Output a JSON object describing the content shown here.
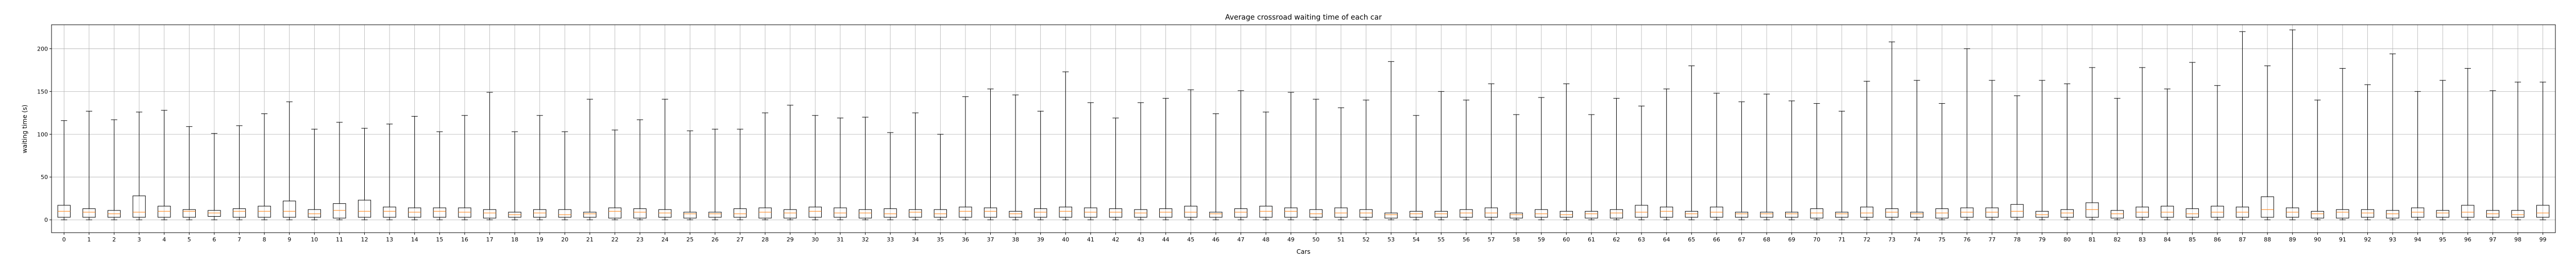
{
  "chart_data": {
    "type": "box",
    "title": "Average crossroad waiting time of each car",
    "xlabel": "Cars",
    "ylabel": "waiting time (s)",
    "ylim": [
      -15,
      228
    ],
    "yticks": [
      0,
      50,
      100,
      150,
      200
    ],
    "grid": true,
    "categories": [
      "0",
      "1",
      "2",
      "3",
      "4",
      "5",
      "6",
      "7",
      "8",
      "9",
      "10",
      "11",
      "12",
      "13",
      "14",
      "15",
      "16",
      "17",
      "18",
      "19",
      "20",
      "21",
      "22",
      "23",
      "24",
      "25",
      "26",
      "27",
      "28",
      "29",
      "30",
      "31",
      "32",
      "33",
      "34",
      "35",
      "36",
      "37",
      "38",
      "39",
      "40",
      "41",
      "42",
      "43",
      "44",
      "45",
      "46",
      "47",
      "48",
      "49",
      "50",
      "51",
      "52",
      "53",
      "54",
      "55",
      "56",
      "57",
      "58",
      "59",
      "60",
      "61",
      "62",
      "63",
      "64",
      "65",
      "66",
      "67",
      "68",
      "69",
      "70",
      "71",
      "72",
      "73",
      "74",
      "75",
      "76",
      "77",
      "78",
      "79",
      "80",
      "81",
      "82",
      "83",
      "84",
      "85",
      "86",
      "87",
      "88",
      "89",
      "90",
      "91",
      "92",
      "93",
      "94",
      "95",
      "96",
      "97",
      "98",
      "99"
    ],
    "whisker_high": [
      116,
      127,
      117,
      126,
      128,
      109,
      101,
      110,
      124,
      138,
      106,
      114,
      107,
      112,
      121,
      103,
      122,
      149,
      103,
      122,
      103,
      141,
      105,
      117,
      141,
      104,
      106,
      106,
      125,
      134,
      122,
      119,
      120,
      102,
      125,
      100,
      144,
      153,
      146,
      127,
      173,
      137,
      119,
      137,
      142,
      152,
      124,
      151,
      126,
      149,
      141,
      131,
      140,
      185,
      122,
      150,
      140,
      159,
      123,
      143,
      159,
      123,
      142,
      133,
      153,
      180,
      148,
      138,
      147,
      139,
      136,
      127,
      162,
      208,
      163,
      136,
      200,
      163,
      145,
      163,
      159,
      178,
      142,
      178,
      153,
      184,
      157,
      220,
      180,
      222,
      140,
      177,
      158,
      194,
      150,
      163,
      177,
      151,
      161,
      161
    ],
    "q3": [
      17,
      13,
      11,
      28,
      16,
      12,
      11,
      13,
      16,
      22,
      12,
      19,
      23,
      15,
      14,
      14,
      14,
      12,
      9,
      12,
      12,
      9,
      14,
      13,
      12,
      9,
      9,
      13,
      14,
      12,
      15,
      14,
      12,
      13,
      12,
      12,
      15,
      14,
      10,
      13,
      15,
      14,
      13,
      12,
      13,
      16,
      9,
      13,
      16,
      14,
      12,
      14,
      12,
      8,
      10,
      10,
      12,
      14,
      8,
      12,
      10,
      10,
      12,
      17,
      15,
      10,
      15,
      9,
      9,
      9,
      13,
      9,
      15,
      13,
      9,
      13,
      14,
      14,
      18,
      10,
      12,
      20,
      11,
      15,
      16,
      13,
      16,
      15,
      27,
      14,
      10,
      12,
      12,
      11,
      14,
      11,
      17,
      11,
      11,
      17
    ],
    "median": [
      10,
      9,
      7,
      9,
      10,
      10,
      8,
      10,
      10,
      10,
      7,
      11,
      10,
      10,
      9,
      10,
      9,
      8,
      6,
      8,
      6,
      7,
      10,
      9,
      8,
      7,
      7,
      7,
      9,
      8,
      10,
      8,
      8,
      7,
      9,
      7,
      10,
      10,
      7,
      9,
      10,
      9,
      9,
      8,
      9,
      9,
      7,
      9,
      10,
      10,
      7,
      8,
      8,
      6,
      7,
      7,
      8,
      8,
      6,
      7,
      6,
      7,
      8,
      9,
      10,
      7,
      9,
      7,
      7,
      7,
      8,
      7,
      8,
      9,
      7,
      8,
      9,
      9,
      10,
      6,
      8,
      12,
      7,
      9,
      9,
      7,
      9,
      9,
      12,
      9,
      7,
      9,
      8,
      7,
      9,
      8,
      9,
      7,
      6,
      8
    ],
    "q1": [
      3,
      3,
      3,
      3,
      3,
      3,
      4,
      3,
      3,
      3,
      3,
      2,
      3,
      3,
      3,
      3,
      3,
      2,
      3,
      3,
      3,
      3,
      2,
      2,
      3,
      2,
      3,
      3,
      2,
      2,
      3,
      3,
      2,
      3,
      3,
      3,
      3,
      3,
      3,
      3,
      3,
      3,
      3,
      3,
      3,
      3,
      3,
      3,
      3,
      3,
      3,
      3,
      3,
      2,
      3,
      3,
      3,
      3,
      2,
      3,
      3,
      2,
      2,
      3,
      3,
      3,
      3,
      3,
      3,
      3,
      2,
      3,
      3,
      3,
      3,
      2,
      3,
      3,
      3,
      3,
      3,
      3,
      2,
      3,
      3,
      3,
      3,
      3,
      3,
      3,
      2,
      2,
      3,
      2,
      3,
      3,
      3,
      3,
      3,
      3
    ],
    "whisker_low": [
      0,
      0,
      0,
      0,
      0,
      0,
      0,
      0,
      0,
      0,
      0,
      0,
      0,
      0,
      0,
      0,
      0,
      0,
      0,
      0,
      0,
      0,
      0,
      0,
      0,
      0,
      0,
      0,
      0,
      0,
      0,
      0,
      0,
      0,
      0,
      0,
      0,
      0,
      0,
      0,
      0,
      0,
      0,
      0,
      0,
      0,
      0,
      0,
      0,
      0,
      0,
      0,
      0,
      0,
      0,
      0,
      0,
      0,
      0,
      0,
      0,
      0,
      0,
      0,
      0,
      0,
      0,
      0,
      0,
      0,
      0,
      0,
      0,
      0,
      0,
      0,
      0,
      0,
      0,
      0,
      0,
      0,
      0,
      0,
      0,
      0,
      0,
      0,
      0,
      0,
      0,
      0,
      0,
      0,
      0,
      0,
      0,
      0,
      0,
      0
    ],
    "colors": {
      "box": "#000000",
      "median": "#ff7f0e",
      "whisker": "#000000",
      "grid": "#b0b0b0",
      "axes": "#000000"
    }
  }
}
